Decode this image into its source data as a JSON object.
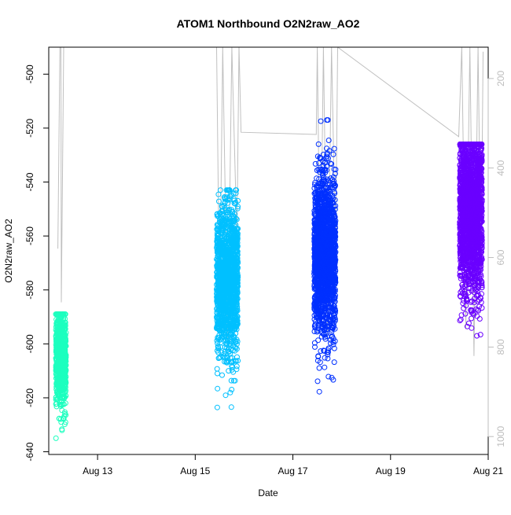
{
  "chart_data": {
    "type": "scatter",
    "title": "ATOM1 Northbound O2N2raw_AO2",
    "xlabel": "Date",
    "ylabel": "O2N2raw_AO2",
    "xlim": [
      "2024-08-12T00:00",
      "2024-08-21T00:00"
    ],
    "ylim": [
      -641,
      -490
    ],
    "y_ticks": [
      -640,
      -620,
      -600,
      -580,
      -560,
      -540,
      -520,
      -500
    ],
    "x_ticks": [
      {
        "label": "Aug 13",
        "value": "2024-08-13"
      },
      {
        "label": "Aug 15",
        "value": "2024-08-15"
      },
      {
        "label": "Aug 17",
        "value": "2024-08-17"
      },
      {
        "label": "Aug 19",
        "value": "2024-08-19"
      },
      {
        "label": "Aug 21",
        "value": "2024-08-21"
      }
    ],
    "y2_ticks": [
      200,
      400,
      600,
      800,
      1000
    ],
    "y2lim": [
      1040,
      130
    ],
    "grid": false,
    "series": [
      {
        "color": "#1cffbf",
        "x_range": [
          "2024-08-12T03:30",
          "2024-08-12T08:30"
        ],
        "center": -606,
        "spread": 9,
        "min": -635,
        "max": -589,
        "count": 700
      },
      {
        "color": "#00c0ff",
        "x_range": [
          "2024-08-15T10:30",
          "2024-08-15T21:00"
        ],
        "center": -577,
        "spread": 14,
        "min": -626,
        "max": -543,
        "count": 1500
      },
      {
        "color": "#0030ff",
        "x_range": [
          "2024-08-17T10:30",
          "2024-08-17T21:00"
        ],
        "center": -567,
        "spread": 15,
        "min": -625,
        "max": -517,
        "count": 1800
      },
      {
        "color": "#6a00ff",
        "x_range": [
          "2024-08-20T10:00",
          "2024-08-20T21:00"
        ],
        "center": -550,
        "spread": 16,
        "min": -616,
        "max": -526,
        "count": 1900
      }
    ],
    "secondary_series": {
      "color": "#c0c0c0",
      "polyline": [
        [
          "2024-08-12T04:30",
          580
        ],
        [
          "2024-08-12T05:30",
          130
        ],
        [
          "2024-08-12T06:00",
          130
        ],
        [
          "2024-08-12T06:10",
          700
        ],
        [
          "2024-08-12T07:20",
          130
        ],
        [
          "2024-08-15T10:30",
          130
        ],
        [
          "2024-08-15T12:00",
          720
        ],
        [
          "2024-08-15T13:30",
          130
        ],
        [
          "2024-08-15T16:00",
          800
        ],
        [
          "2024-08-15T18:00",
          130
        ],
        [
          "2024-08-15T20:30",
          560
        ],
        [
          "2024-08-15T21:30",
          128
        ],
        [
          "2024-08-15T22:30",
          320
        ],
        [
          "2024-08-17T11:30",
          325
        ],
        [
          "2024-08-17T12:00",
          130
        ],
        [
          "2024-08-17T13:30",
          700
        ],
        [
          "2024-08-17T15:00",
          130
        ],
        [
          "2024-08-17T17:00",
          780
        ],
        [
          "2024-08-17T19:00",
          130
        ],
        [
          "2024-08-17T21:00",
          600
        ],
        [
          "2024-08-17T22:00",
          130
        ],
        [
          "2024-08-20T09:30",
          330
        ],
        [
          "2024-08-20T11:00",
          130
        ],
        [
          "2024-08-20T13:00",
          760
        ],
        [
          "2024-08-20T15:00",
          130
        ],
        [
          "2024-08-20T17:00",
          820
        ],
        [
          "2024-08-20T19:00",
          130
        ],
        [
          "2024-08-20T20:30",
          650
        ],
        [
          "2024-08-20T21:30",
          140
        ]
      ]
    }
  }
}
